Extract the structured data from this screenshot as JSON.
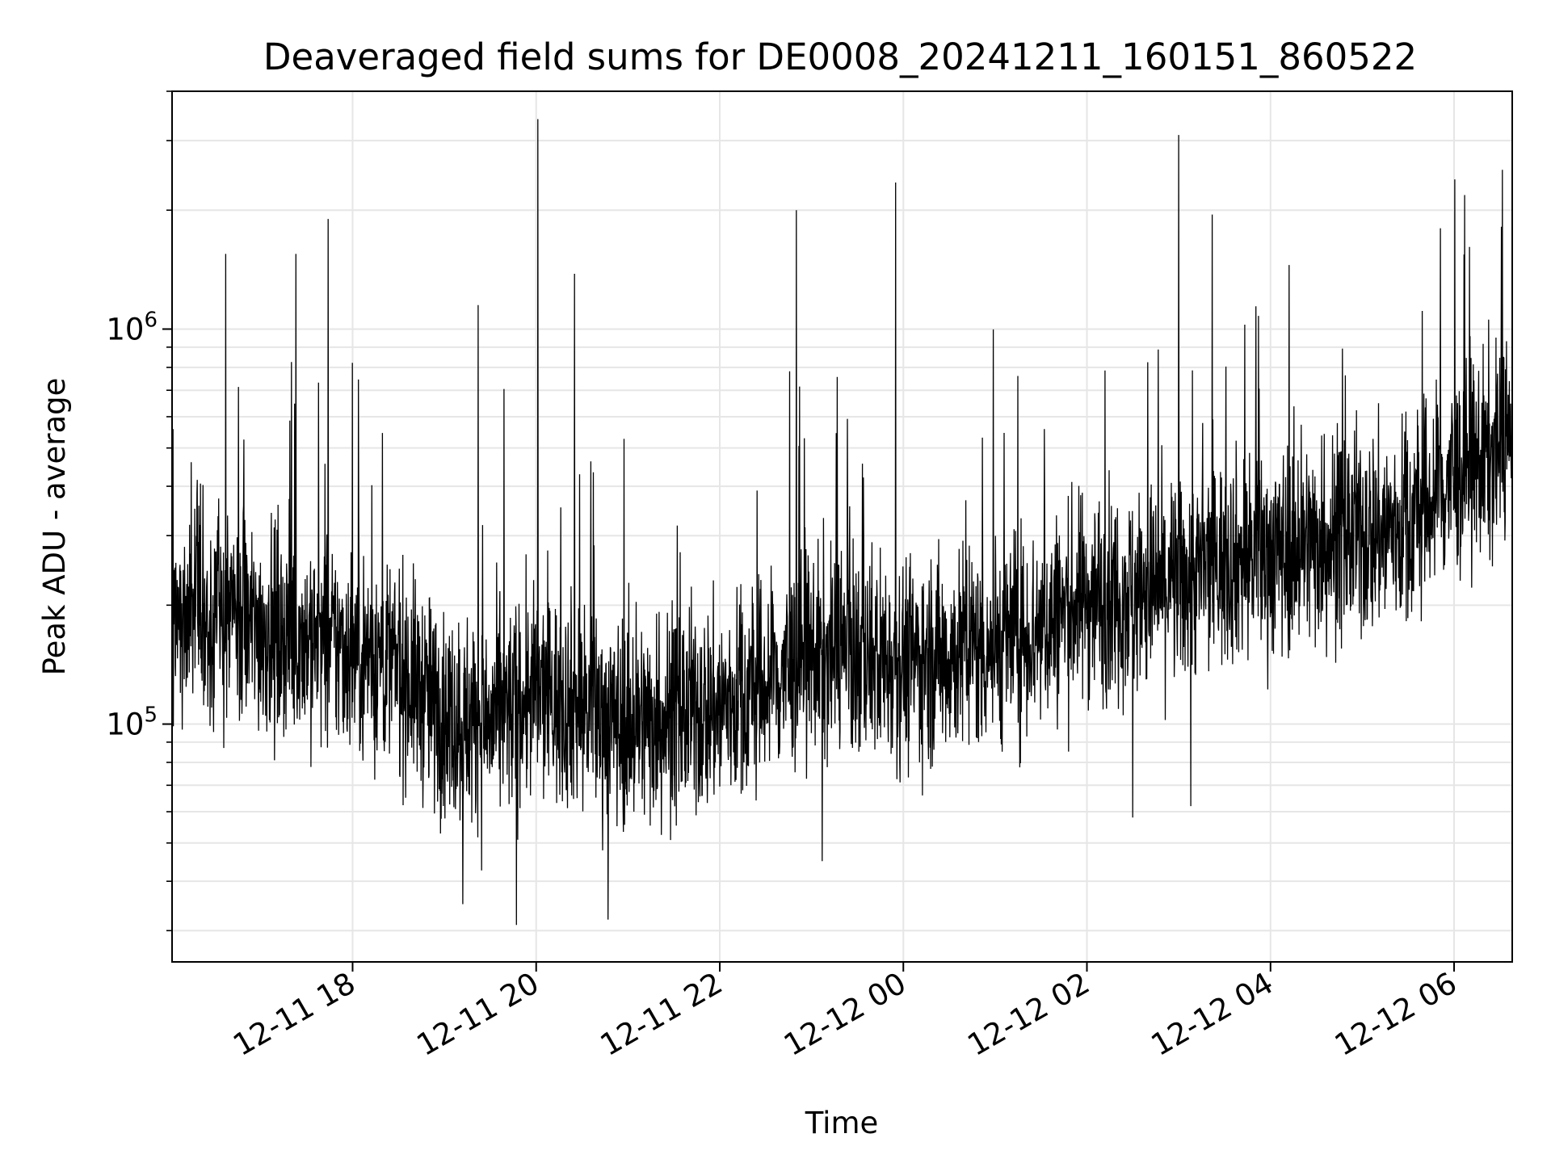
{
  "chart_data": {
    "type": "line",
    "title": "Deaveraged field sums for DE0008_20241211_160151_860522",
    "xlabel": "Time",
    "ylabel": "Peak ADU - average",
    "yscale": "log",
    "xlim": [
      "2024-12-11 16:02",
      "2024-12-12 06:38"
    ],
    "ylim": [
      25000,
      4000000
    ],
    "grid": true,
    "line_color": "#000000",
    "x_ticks": [
      {
        "time": "2024-12-11 18:00",
        "label": "12-11 18"
      },
      {
        "time": "2024-12-11 20:00",
        "label": "12-11 20"
      },
      {
        "time": "2024-12-11 22:00",
        "label": "12-11 22"
      },
      {
        "time": "2024-12-12 00:00",
        "label": "12-12 00"
      },
      {
        "time": "2024-12-12 02:00",
        "label": "12-12 02"
      },
      {
        "time": "2024-12-12 04:00",
        "label": "12-12 04"
      },
      {
        "time": "2024-12-12 06:00",
        "label": "12-12 06"
      }
    ],
    "y_ticks": [
      {
        "value": 100000,
        "base": "10",
        "exp": "5"
      },
      {
        "value": 1000000,
        "base": "10",
        "exp": "6"
      }
    ],
    "series": [
      {
        "x": [
          "2024-12-11 16:02",
          "2024-12-11 16:30",
          "2024-12-11 17:00",
          "2024-12-11 17:30",
          "2024-12-11 18:00",
          "2024-12-11 18:30",
          "2024-12-11 19:00",
          "2024-12-11 19:30",
          "2024-12-11 20:00",
          "2024-12-11 20:30",
          "2024-12-11 21:00",
          "2024-12-11 21:30",
          "2024-12-11 22:00",
          "2024-12-11 22:30",
          "2024-12-11 23:00",
          "2024-12-11 23:30",
          "2024-12-12 00:00",
          "2024-12-12 00:30",
          "2024-12-12 01:00",
          "2024-12-12 01:30",
          "2024-12-12 02:00",
          "2024-12-12 02:30",
          "2024-12-12 03:00",
          "2024-12-12 03:30",
          "2024-12-12 04:00",
          "2024-12-12 04:30",
          "2024-12-12 05:00",
          "2024-12-12 05:30",
          "2024-12-12 06:00",
          "2024-12-12 06:38"
        ],
        "y": [
          200000,
          190000,
          175000,
          165000,
          155000,
          140000,
          105000,
          100000,
          120000,
          110000,
          100000,
          105000,
          110000,
          125000,
          150000,
          150000,
          145000,
          150000,
          160000,
          175000,
          210000,
          215000,
          230000,
          260000,
          270000,
          290000,
          300000,
          320000,
          420000,
          520000
        ]
      }
    ],
    "spikes": [
      {
        "time": "2024-12-11 16:37",
        "value": 1550000
      },
      {
        "time": "2024-12-11 17:23",
        "value": 1550000
      },
      {
        "time": "2024-12-11 17:44",
        "value": 1900000
      },
      {
        "time": "2024-12-11 19:22",
        "value": 1150000
      },
      {
        "time": "2024-12-11 20:01",
        "value": 3400000
      },
      {
        "time": "2024-12-11 20:25",
        "value": 1380000
      },
      {
        "time": "2024-12-11 22:50",
        "value": 2000000
      },
      {
        "time": "2024-12-11 23:55",
        "value": 2350000
      },
      {
        "time": "2024-12-12 03:00",
        "value": 3100000
      },
      {
        "time": "2024-12-12 03:22",
        "value": 1950000
      },
      {
        "time": "2024-12-12 05:51",
        "value": 1800000
      }
    ],
    "dips": [
      {
        "time": "2024-12-11 19:47",
        "value": 31000
      },
      {
        "time": "2024-12-11 20:47",
        "value": 32000
      },
      {
        "time": "2024-12-11 19:12",
        "value": 35000
      },
      {
        "time": "2024-12-11 23:07",
        "value": 45000
      },
      {
        "time": "2024-12-12 02:30",
        "value": 58000
      },
      {
        "time": "2024-12-12 03:08",
        "value": 62000
      }
    ]
  }
}
